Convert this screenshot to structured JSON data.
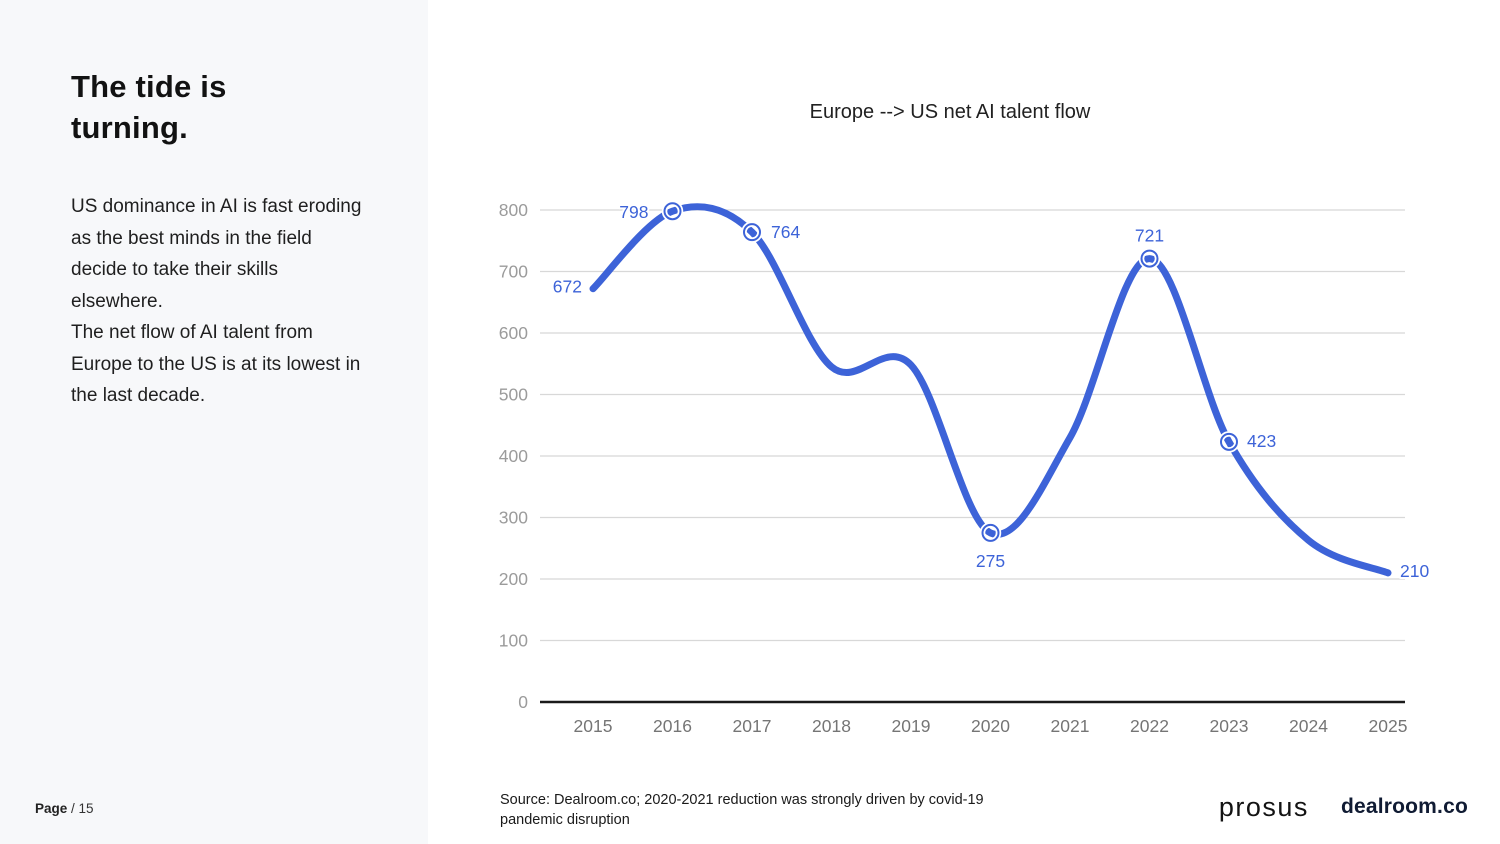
{
  "sidebar": {
    "title": "The tide is turning.",
    "paragraphs": [
      "US dominance in AI is fast eroding as the best minds in the field decide to take their skills elsewhere.",
      "The net flow of AI talent from Europe to the US is at its lowest in the last decade."
    ],
    "page_label": "Page",
    "page_number": "/ 15"
  },
  "chart_data": {
    "type": "line",
    "title": "Europe --> US net AI talent flow",
    "x": [
      2015,
      2016,
      2017,
      2018,
      2019,
      2020,
      2021,
      2022,
      2023,
      2024,
      2025
    ],
    "values": [
      672,
      798,
      764,
      545,
      548,
      275,
      430,
      721,
      423,
      263,
      210
    ],
    "labeled_values": {
      "2015": 672,
      "2016": 798,
      "2017": 764,
      "2020": 275,
      "2022": 721,
      "2023": 423,
      "2025": 210
    },
    "estimated_years": [
      2018,
      2019,
      2021,
      2024
    ],
    "marker_years": [
      2016,
      2017,
      2020,
      2022,
      2023
    ],
    "ylim": [
      0,
      800
    ],
    "ytick_step": 100,
    "grid": true,
    "legend": "none",
    "line_color": "#3D63D8",
    "data_label_color": "#3D63D8",
    "ytick_color": "#9b9b9b",
    "xtick_color": "#757575",
    "grid_color": "#d8d8d8",
    "axis_color": "#1a1a1a"
  },
  "footer": {
    "source_line1": "Source:  Dealroom.co;   2020-2021 reduction was strongly driven by covid-19",
    "source_line2": "pandemic disruption",
    "logo_prosus": "prosus",
    "logo_dealroom": "dealroom.co"
  }
}
